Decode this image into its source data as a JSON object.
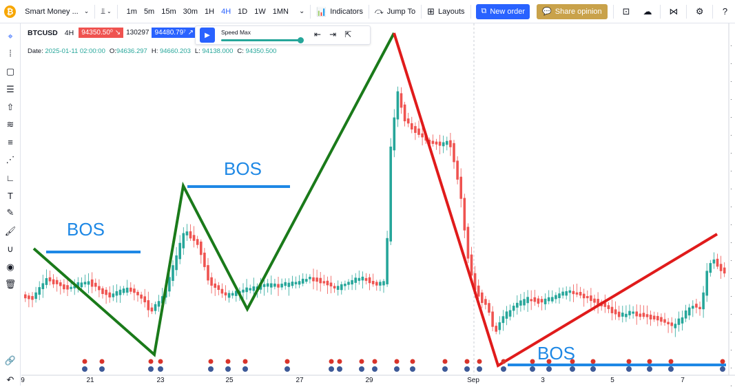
{
  "toolbar": {
    "strategy_title": "Smart Money ...",
    "timeframes": [
      "1m",
      "5m",
      "15m",
      "30m",
      "1H",
      "4H",
      "1D",
      "1W",
      "1MN"
    ],
    "active_timeframe": "4H",
    "indicators_label": "Indicators",
    "jump_to_label": "Jump To",
    "layouts_label": "Layouts",
    "new_order_label": "New order",
    "share_opinion_label": "Share opinion"
  },
  "symbol_bar": {
    "symbol": "BTCUSD",
    "interval": "4H",
    "sell_price": "94350.50⁰",
    "mid_value": "130297",
    "buy_price": "94480.79⁷"
  },
  "ohlc": {
    "date_label": "Date:",
    "date_value": "2025-01-11 02:00:00",
    "open_label": "O:",
    "open_value": "94636.297",
    "high_label": "H:",
    "high_value": "94660.203",
    "low_label": "L:",
    "low_value": "94138.000",
    "close_label": "C:",
    "close_value": "94350.500"
  },
  "replay": {
    "speed_label": "Speed Max",
    "speed_fraction": 1.0
  },
  "annotations": {
    "bos_1": "BOS",
    "bos_2": "BOS",
    "bos_3": "BOS"
  },
  "x_axis_labels": [
    "9",
    "21",
    "23",
    "25",
    "27",
    "29",
    "Sep",
    "3",
    "5",
    "7"
  ],
  "colors": {
    "up": "#26a69a",
    "down": "#ef5350",
    "green_line": "#1a7a1a",
    "red_line": "#e01b1b",
    "bos_line": "#1e88e5",
    "accent": "#2962ff"
  },
  "icons": {
    "left_toolbar": [
      "cursor-icon",
      "trend-line-icon",
      "rectangle-icon",
      "fib-icon",
      "arrow-up-icon",
      "channel-icon",
      "parallel-icon",
      "zigzag-icon",
      "measure-icon",
      "text-icon",
      "brush-icon",
      "pencil-icon",
      "magnet-icon",
      "eye-icon",
      "trash-icon",
      "link-icon",
      "undo-icon"
    ]
  }
}
